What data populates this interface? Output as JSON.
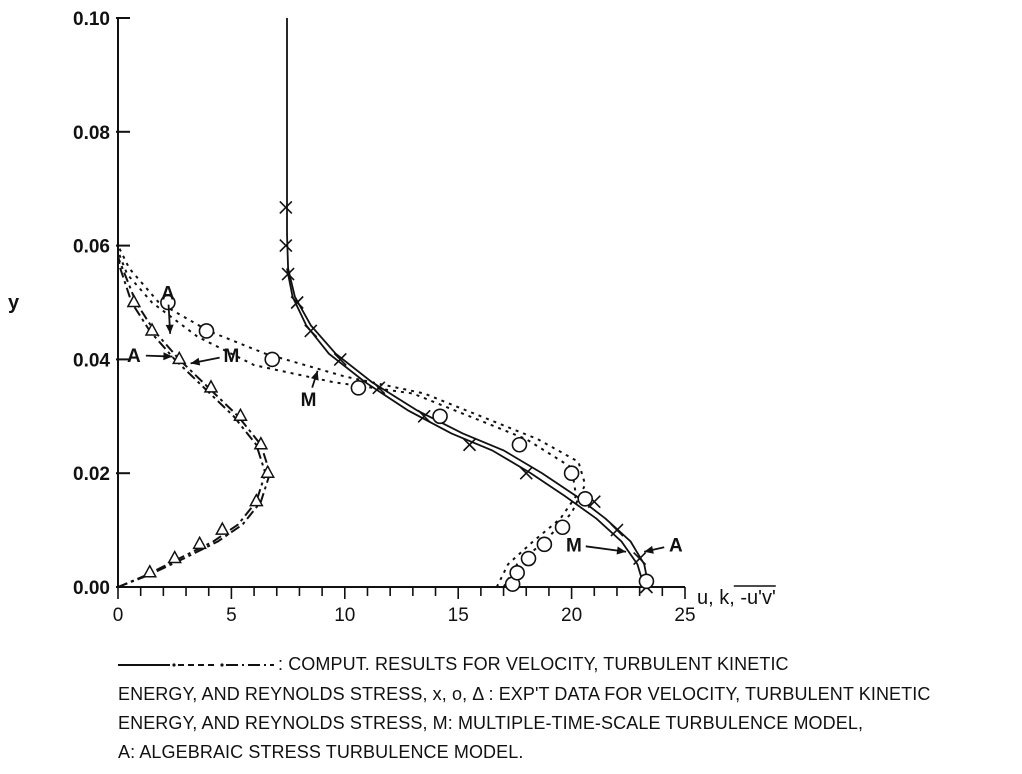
{
  "chart_data": {
    "type": "line",
    "title": "",
    "xlabel": "u, k, -u'v'",
    "ylabel": "y",
    "xlim": [
      0,
      25
    ],
    "ylim": [
      0,
      0.1
    ],
    "x_ticks": [
      0,
      5,
      10,
      15,
      20,
      25
    ],
    "x_tick_labels": [
      "0",
      "5",
      "10",
      "15",
      "20",
      "25"
    ],
    "y_ticks": [
      0,
      0.02,
      0.04,
      0.06,
      0.08,
      0.1
    ],
    "y_tick_labels": [
      "0.00",
      "0.02",
      "0.04",
      "0.06",
      "0.08",
      "0.10"
    ],
    "grid": false,
    "curves": [
      {
        "quantity": "velocity",
        "model": "A",
        "style": "solid",
        "points": [
          [
            23.4,
            0
          ],
          [
            23.2,
            0.004
          ],
          [
            22.6,
            0.008
          ],
          [
            21.5,
            0.012
          ],
          [
            20.2,
            0.016
          ],
          [
            18.7,
            0.02
          ],
          [
            17.0,
            0.024
          ],
          [
            15.2,
            0.027
          ],
          [
            13.2,
            0.031
          ],
          [
            11.2,
            0.036
          ],
          [
            9.6,
            0.041
          ],
          [
            8.5,
            0.046
          ],
          [
            7.8,
            0.051
          ],
          [
            7.5,
            0.056
          ],
          [
            7.45,
            0.062
          ],
          [
            7.45,
            0.1
          ]
        ]
      },
      {
        "quantity": "velocity",
        "model": "M",
        "style": "solid",
        "points": [
          [
            23.2,
            0
          ],
          [
            22.9,
            0.004
          ],
          [
            22.2,
            0.008
          ],
          [
            21.1,
            0.012
          ],
          [
            19.7,
            0.016
          ],
          [
            18.2,
            0.02
          ],
          [
            16.5,
            0.024
          ],
          [
            14.7,
            0.027
          ],
          [
            12.8,
            0.031
          ],
          [
            10.9,
            0.036
          ],
          [
            9.3,
            0.041
          ],
          [
            8.3,
            0.046
          ],
          [
            7.7,
            0.051
          ],
          [
            7.45,
            0.056
          ]
        ]
      },
      {
        "quantity": "turbulent kinetic energy",
        "model": "A",
        "style": "dotted",
        "points": [
          [
            17.0,
            0
          ],
          [
            17.6,
            0.004
          ],
          [
            18.8,
            0.008
          ],
          [
            20.0,
            0.013
          ],
          [
            20.6,
            0.018
          ],
          [
            20.3,
            0.022
          ],
          [
            18.5,
            0.026
          ],
          [
            16.0,
            0.03
          ],
          [
            13.5,
            0.034
          ],
          [
            10.0,
            0.037
          ],
          [
            6.5,
            0.041
          ],
          [
            4.0,
            0.045
          ],
          [
            1.8,
            0.05
          ],
          [
            0.5,
            0.056
          ],
          [
            0,
            0.06
          ]
        ]
      },
      {
        "quantity": "turbulent kinetic energy",
        "model": "M",
        "style": "dotted",
        "points": [
          [
            16.7,
            0
          ],
          [
            17.2,
            0.004
          ],
          [
            18.3,
            0.008
          ],
          [
            19.5,
            0.012
          ],
          [
            20.2,
            0.016
          ],
          [
            20.0,
            0.021
          ],
          [
            18.0,
            0.026
          ],
          [
            15.5,
            0.03
          ],
          [
            13.0,
            0.034
          ],
          [
            9.5,
            0.036
          ],
          [
            6.0,
            0.039
          ],
          [
            3.5,
            0.044
          ],
          [
            1.5,
            0.05
          ],
          [
            0.4,
            0.055
          ],
          [
            0,
            0.059
          ]
        ]
      },
      {
        "quantity": "Reynolds stress",
        "model": "A",
        "style": "dashdot",
        "points": [
          [
            0,
            0
          ],
          [
            1.2,
            0.002
          ],
          [
            2.7,
            0.005
          ],
          [
            4.2,
            0.008
          ],
          [
            5.3,
            0.011
          ],
          [
            6.1,
            0.015
          ],
          [
            6.5,
            0.02
          ],
          [
            6.1,
            0.025
          ],
          [
            5.1,
            0.03
          ],
          [
            3.8,
            0.035
          ],
          [
            2.5,
            0.04
          ],
          [
            1.4,
            0.045
          ],
          [
            0.6,
            0.05
          ],
          [
            0.1,
            0.056
          ],
          [
            0,
            0.058
          ]
        ]
      },
      {
        "quantity": "Reynolds stress",
        "model": "M",
        "style": "dashdot",
        "points": [
          [
            0,
            0
          ],
          [
            1.3,
            0.002
          ],
          [
            2.9,
            0.005
          ],
          [
            4.4,
            0.008
          ],
          [
            5.5,
            0.011
          ],
          [
            6.3,
            0.015
          ],
          [
            6.7,
            0.02
          ],
          [
            6.3,
            0.025
          ],
          [
            5.3,
            0.03
          ],
          [
            4.0,
            0.035
          ],
          [
            2.7,
            0.04
          ],
          [
            1.6,
            0.045
          ],
          [
            0.8,
            0.05
          ],
          [
            0.2,
            0.056
          ],
          [
            0,
            0.058
          ]
        ]
      }
    ],
    "markers": [
      {
        "quantity": "velocity",
        "symbol": "x",
        "points": [
          [
            23.3,
            0
          ],
          [
            23.0,
            0.005
          ],
          [
            22.0,
            0.01
          ],
          [
            21.0,
            0.015
          ],
          [
            18.0,
            0.02
          ],
          [
            15.5,
            0.025
          ],
          [
            13.5,
            0.03
          ],
          [
            11.5,
            0.035
          ],
          [
            9.8,
            0.04
          ],
          [
            8.5,
            0.045
          ],
          [
            7.9,
            0.05
          ],
          [
            7.5,
            0.055
          ],
          [
            7.4,
            0.06
          ],
          [
            7.4,
            0.0667
          ]
        ]
      },
      {
        "quantity": "turbulent kinetic energy",
        "symbol": "o",
        "points": [
          [
            23.3,
            0.001
          ],
          [
            17.4,
            0.0005
          ],
          [
            17.6,
            0.0025
          ],
          [
            18.1,
            0.005
          ],
          [
            18.8,
            0.0075
          ],
          [
            19.6,
            0.0105
          ],
          [
            20.6,
            0.0155
          ],
          [
            20.0,
            0.02
          ],
          [
            17.7,
            0.025
          ],
          [
            14.2,
            0.03
          ],
          [
            10.6,
            0.035
          ],
          [
            6.8,
            0.04
          ],
          [
            3.9,
            0.045
          ],
          [
            2.2,
            0.05
          ]
        ]
      },
      {
        "quantity": "Reynolds stress",
        "symbol": "triangle",
        "points": [
          [
            1.4,
            0.0025
          ],
          [
            2.5,
            0.005
          ],
          [
            3.6,
            0.0075
          ],
          [
            4.6,
            0.01
          ],
          [
            6.1,
            0.015
          ],
          [
            6.6,
            0.02
          ],
          [
            6.3,
            0.025
          ],
          [
            5.4,
            0.03
          ],
          [
            4.1,
            0.035
          ],
          [
            2.7,
            0.04
          ],
          [
            1.5,
            0.045
          ],
          [
            0.7,
            0.05
          ]
        ]
      }
    ],
    "annotations": [
      {
        "text": "A",
        "x": 2.2,
        "y": 0.0505,
        "target": [
          2.3,
          0.0445
        ]
      },
      {
        "text": "M",
        "x": 8.4,
        "y": 0.0318,
        "target": [
          8.8,
          0.038
        ]
      },
      {
        "text": "A",
        "x": 0.7,
        "y": 0.0395,
        "target": [
          2.4,
          0.0405
        ]
      },
      {
        "text": "M",
        "x": 5.0,
        "y": 0.0395,
        "target": [
          3.2,
          0.0393
        ]
      },
      {
        "text": "M",
        "x": 20.1,
        "y": 0.0062,
        "target": [
          22.4,
          0.0062
        ]
      },
      {
        "text": "A",
        "x": 24.6,
        "y": 0.0062,
        "target": [
          23.2,
          0.0062
        ]
      }
    ]
  },
  "caption": {
    "legend_symbols": "·----·, —·—·",
    "line1": ": COMPUT. RESULTS FOR VELOCITY, TURBULENT KINETIC",
    "line2": "ENERGY, AND REYNOLDS STRESS, x, o, Δ : EXP'T DATA FOR VELOCITY, TURBULENT KINETIC",
    "line3": "ENERGY, AND REYNOLDS STRESS,  M: MULTIPLE-TIME-SCALE TURBULENCE MODEL,",
    "line4": "A: ALGEBRAIC STRESS TURBULENCE MODEL."
  }
}
